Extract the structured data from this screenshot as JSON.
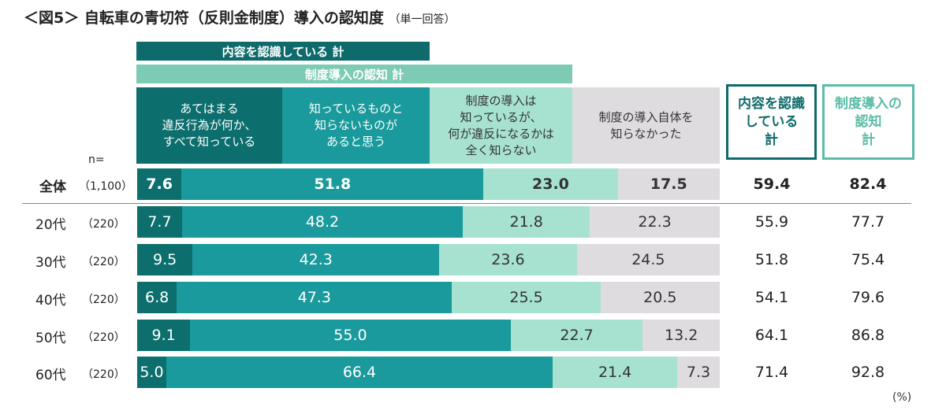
{
  "title": "＜図5＞ 自転車の青切符（反則金制度）導入の認知度",
  "subtitle": "（単一回答）",
  "bands": {
    "aware": "内容を認識している 計",
    "known": "制度導入の認知 計"
  },
  "n_label": "n=",
  "unit": "(%)",
  "total_headers": {
    "aware": "内容を認識\nしている\n計",
    "known": "制度導入の\n認知\n計"
  },
  "colors": {
    "seg1": "#0d6e6e",
    "seg2": "#1a9a9c",
    "seg3": "#a7e2d0",
    "seg4": "#dedcdf",
    "aware": "#0f6b6b",
    "known": "#5bbca6"
  },
  "chart_data": {
    "type": "bar",
    "stacked": true,
    "orientation": "horizontal",
    "xlim": [
      0,
      100
    ],
    "series": [
      {
        "name": "あてはまる\n違反行為が何か、\nすべて知っている",
        "values": [
          7.6,
          7.7,
          9.5,
          6.8,
          9.1,
          5.0
        ]
      },
      {
        "name": "知っているものと\n知らないものが\nあると思う",
        "values": [
          51.8,
          48.2,
          42.3,
          47.3,
          55.0,
          66.4
        ]
      },
      {
        "name": "制度の導入は\n知っているが、\n何が違反になるかは\n全く知らない",
        "values": [
          23.0,
          21.8,
          23.6,
          25.5,
          22.7,
          21.4
        ]
      },
      {
        "name": "制度の導入自体を\n知らなかった",
        "values": [
          17.5,
          22.3,
          24.5,
          20.5,
          13.2,
          7.3
        ]
      }
    ],
    "rows": [
      {
        "label": "全体",
        "n": "（1,100）",
        "aware_total": "59.4",
        "known_total": "82.4"
      },
      {
        "label": "20代",
        "n": "（220）",
        "aware_total": "55.9",
        "known_total": "77.7"
      },
      {
        "label": "30代",
        "n": "（220）",
        "aware_total": "51.8",
        "known_total": "75.4"
      },
      {
        "label": "40代",
        "n": "（220）",
        "aware_total": "54.1",
        "known_total": "79.6"
      },
      {
        "label": "50代",
        "n": "（220）",
        "aware_total": "64.1",
        "known_total": "86.8"
      },
      {
        "label": "60代",
        "n": "（220）",
        "aware_total": "71.4",
        "known_total": "92.8"
      }
    ]
  }
}
